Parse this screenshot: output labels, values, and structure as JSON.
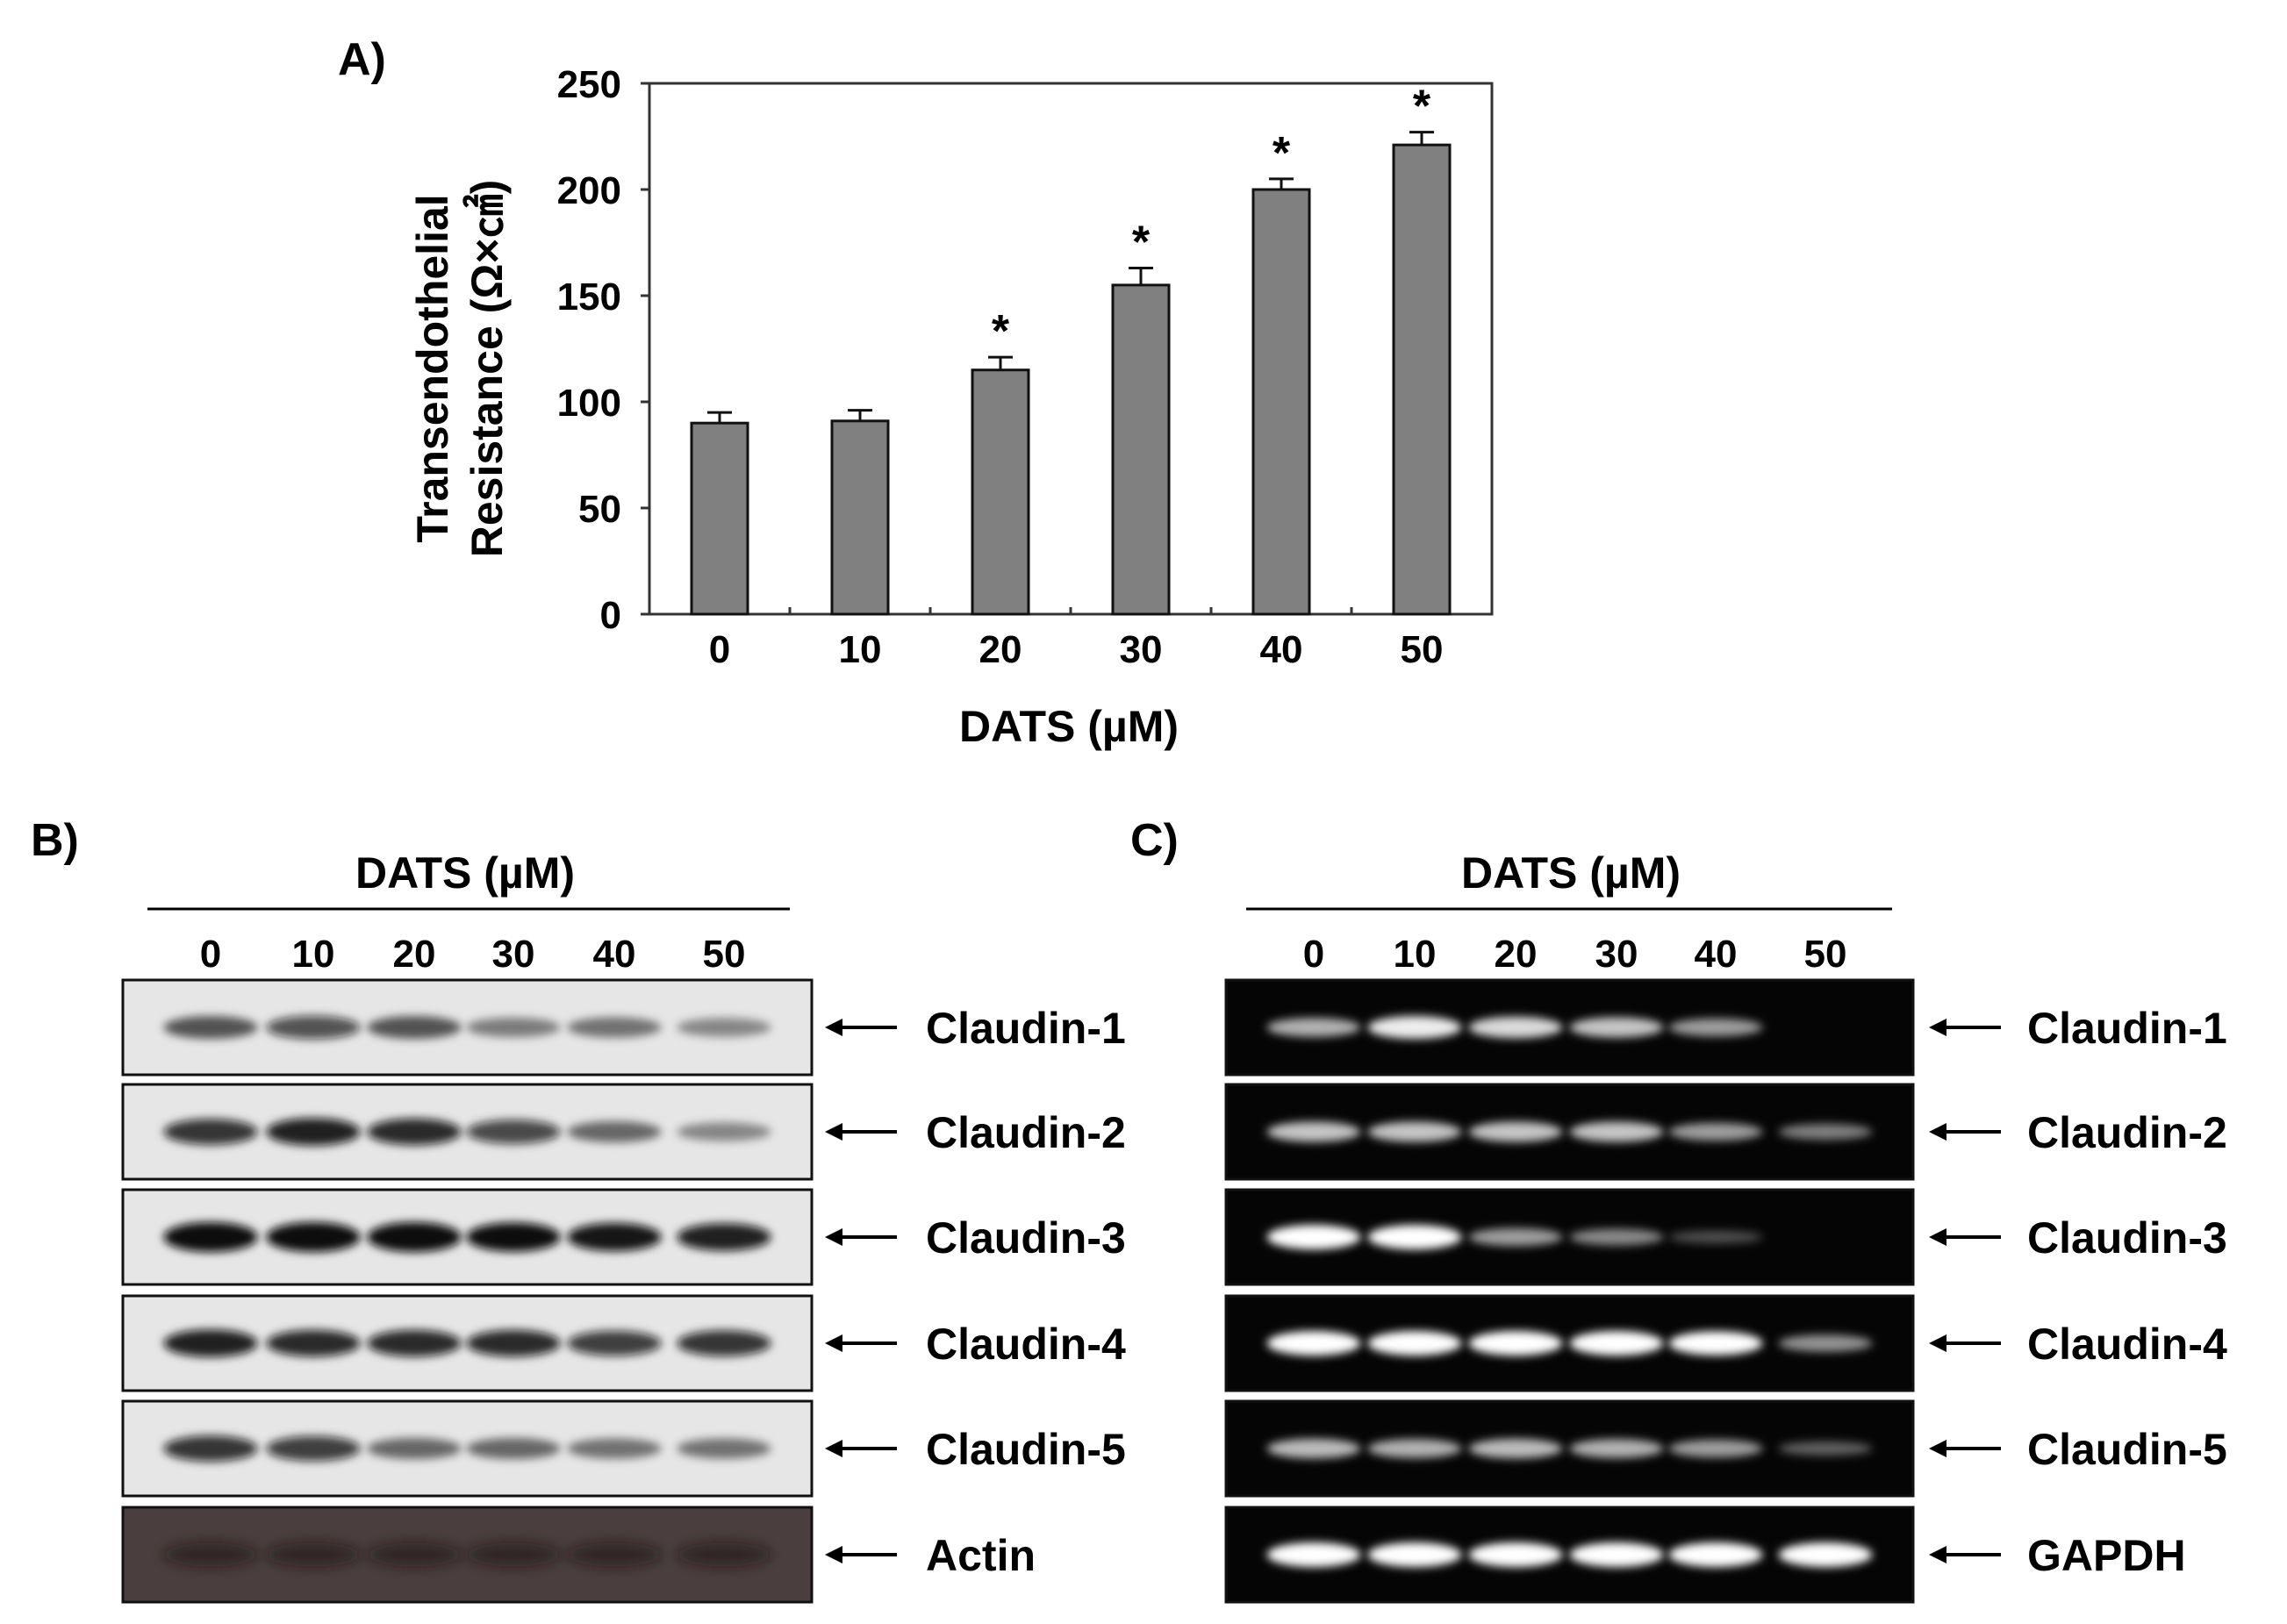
{
  "panel_a": {
    "label": "A)",
    "chart_data": {
      "type": "bar",
      "categories": [
        "0",
        "10",
        "20",
        "30",
        "40",
        "50"
      ],
      "values": [
        90,
        91,
        115,
        155,
        200,
        221
      ],
      "errors": [
        5,
        5,
        6,
        8,
        5,
        6
      ],
      "significance": [
        "",
        "",
        "*",
        "*",
        "*",
        "*"
      ],
      "title": "",
      "xlabel": "DATS (µM)",
      "ylabel_line1": "Transendothelial",
      "ylabel_line2": "Resistance (Ω×㎠)",
      "ylim": [
        0,
        250
      ],
      "yticks": [
        "0",
        "50",
        "100",
        "150",
        "200",
        "250"
      ],
      "bar_color": "#808080",
      "grid": false,
      "legend": "none"
    }
  },
  "panel_b": {
    "label": "B)",
    "header": "DATS (µM)",
    "lanes": [
      "0",
      "10",
      "20",
      "30",
      "40",
      "50"
    ],
    "blot_type": "western",
    "bands": [
      {
        "name": "Claudin-1",
        "intensity": [
          0.55,
          0.6,
          0.55,
          0.35,
          0.4,
          0.3
        ]
      },
      {
        "name": "Claudin-2",
        "intensity": [
          0.75,
          0.85,
          0.8,
          0.65,
          0.45,
          0.3
        ]
      },
      {
        "name": "Claudin-3",
        "intensity": [
          1.0,
          1.0,
          1.0,
          0.95,
          0.9,
          0.85
        ]
      },
      {
        "name": "Claudin-4",
        "intensity": [
          0.85,
          0.8,
          0.8,
          0.8,
          0.7,
          0.75
        ]
      },
      {
        "name": "Claudin-5",
        "intensity": [
          0.75,
          0.7,
          0.45,
          0.45,
          0.4,
          0.4
        ]
      },
      {
        "name": "Actin",
        "intensity": [
          0.6,
          0.6,
          0.6,
          0.6,
          0.6,
          0.6
        ]
      }
    ]
  },
  "panel_c": {
    "label": "C)",
    "header": "DATS (µM)",
    "lanes": [
      "0",
      "10",
      "20",
      "30",
      "40",
      "50"
    ],
    "blot_type": "rt-pcr",
    "bands": [
      {
        "name": "Claudin-1",
        "intensity": [
          0.55,
          0.85,
          0.75,
          0.65,
          0.45,
          0.0
        ]
      },
      {
        "name": "Claudin-2",
        "intensity": [
          0.65,
          0.65,
          0.65,
          0.65,
          0.45,
          0.3
        ]
      },
      {
        "name": "Claudin-3",
        "intensity": [
          1.0,
          1.0,
          0.45,
          0.35,
          0.05,
          0.0
        ]
      },
      {
        "name": "Claudin-4",
        "intensity": [
          1.0,
          1.0,
          1.0,
          1.0,
          0.95,
          0.4
        ]
      },
      {
        "name": "Claudin-5",
        "intensity": [
          0.6,
          0.55,
          0.6,
          0.55,
          0.45,
          0.15
        ]
      },
      {
        "name": "GAPDH",
        "intensity": [
          1.0,
          1.0,
          1.0,
          1.0,
          1.0,
          1.0
        ]
      }
    ]
  }
}
